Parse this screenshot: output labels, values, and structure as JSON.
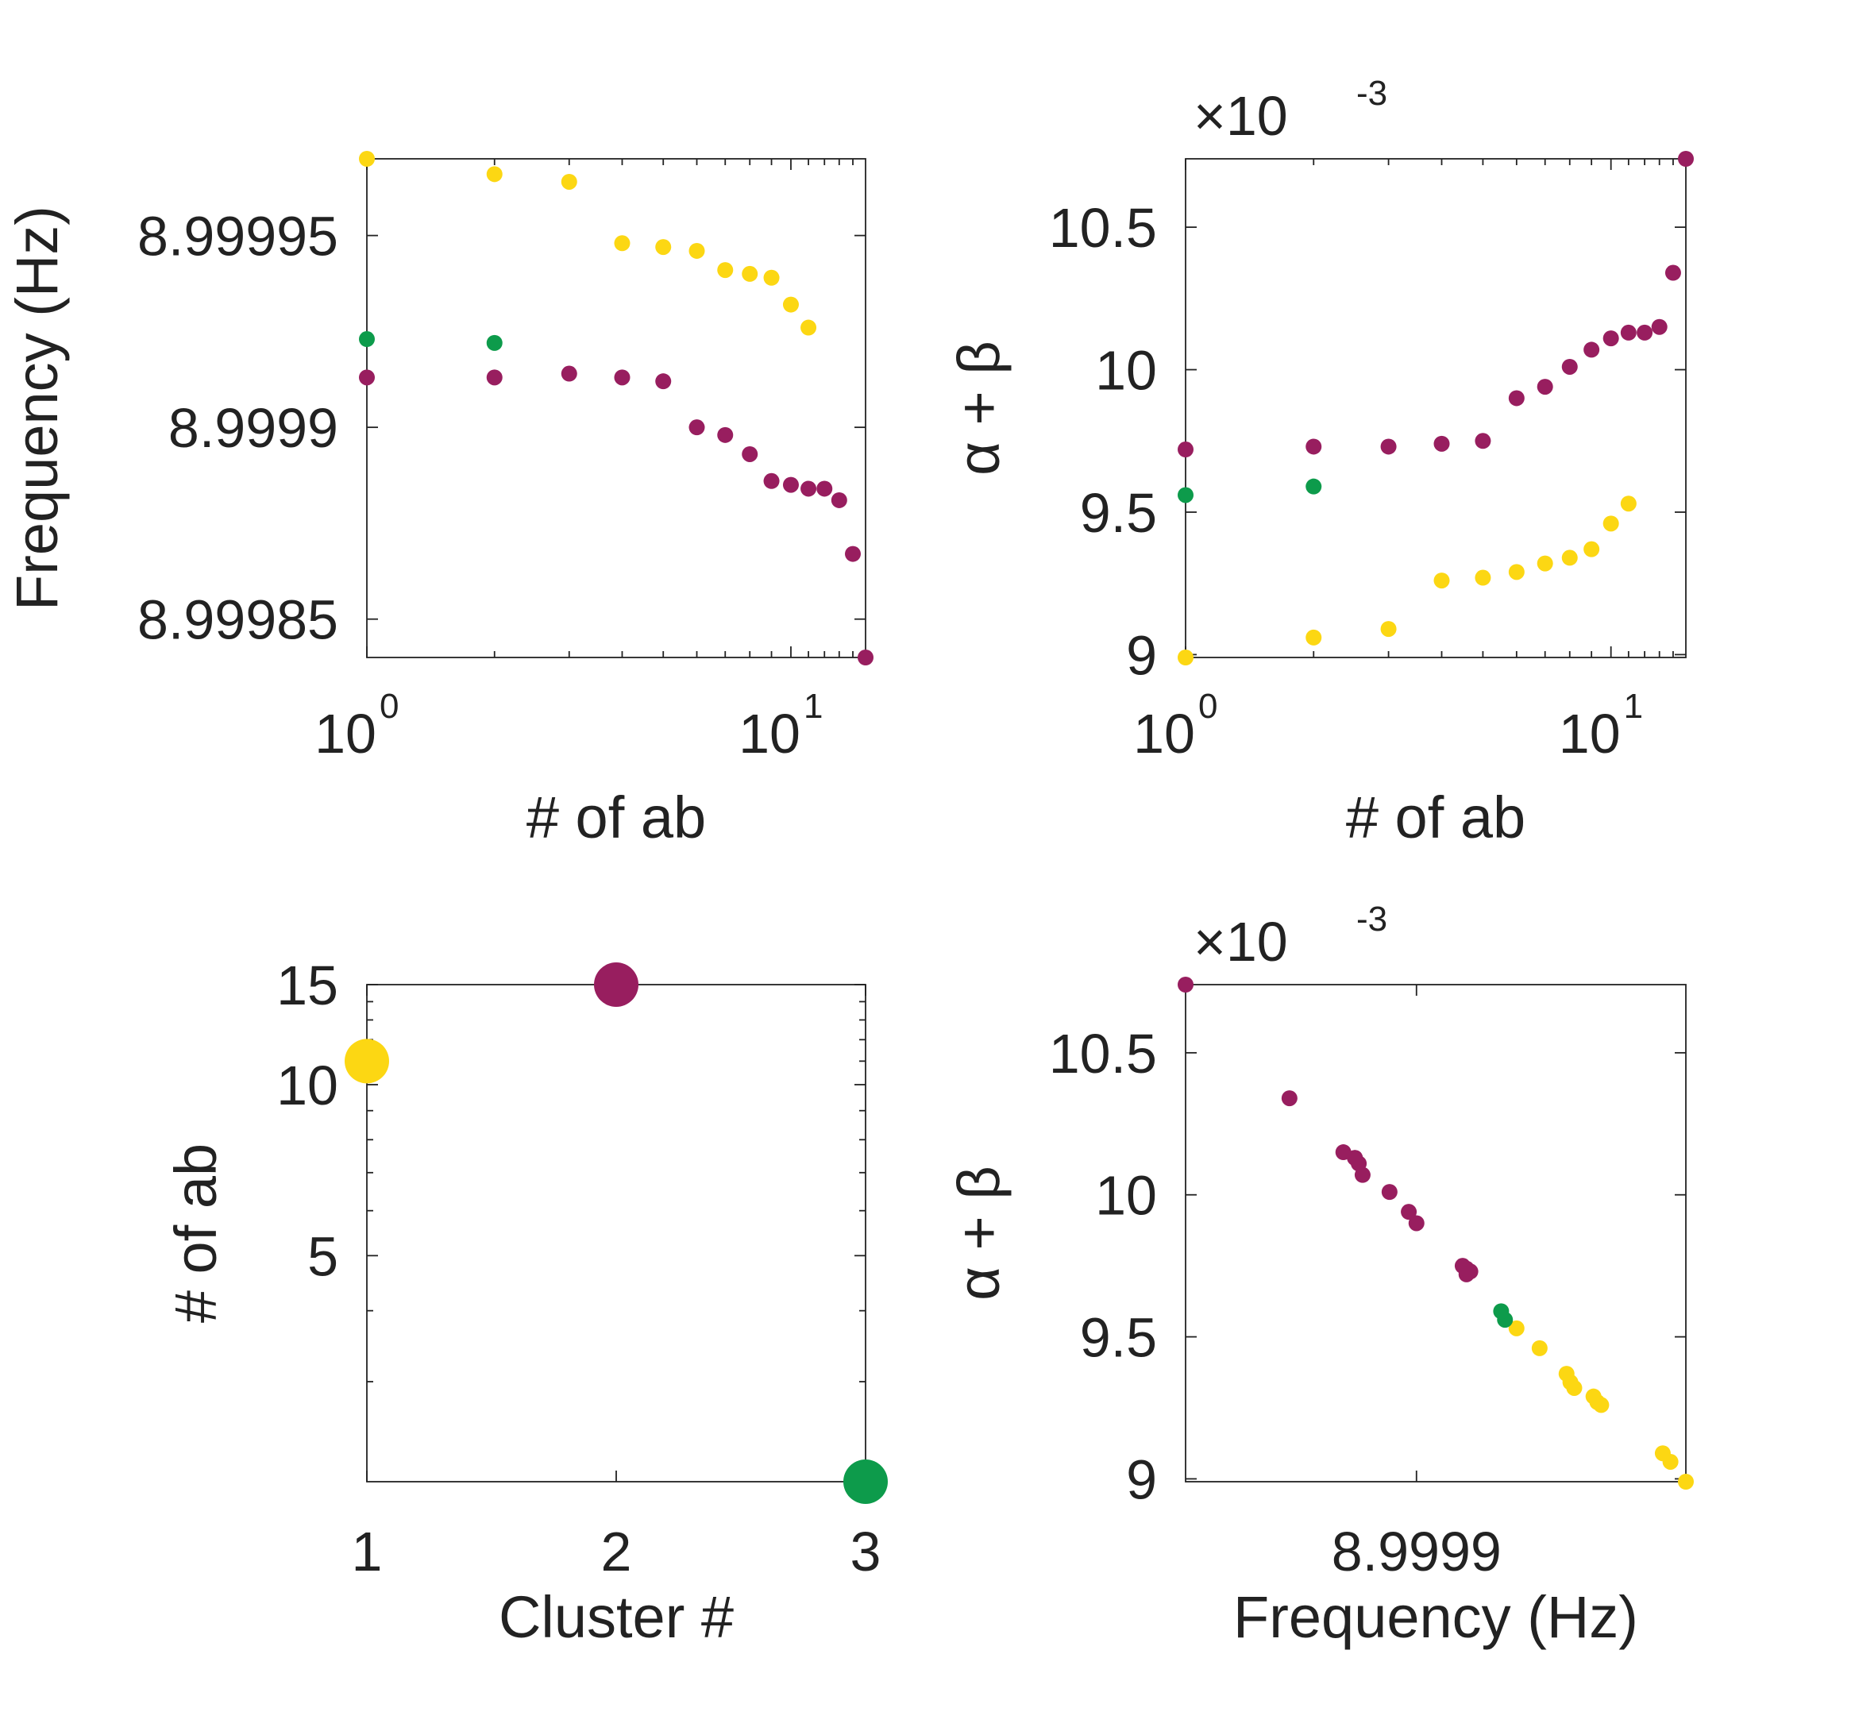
{
  "colors": {
    "yellow": "#fcd713",
    "purple": "#981e5f",
    "green": "#0d9b4b",
    "axis": "#222222"
  },
  "chart_data": [
    {
      "id": "p1",
      "type": "scatter",
      "xlabel": "# of ab",
      "ylabel": "Frequency (Hz)",
      "xscale": "log",
      "xlim": [
        1,
        15
      ],
      "ylim": [
        8.99984,
        8.99997
      ],
      "yticks": [
        {
          "v": 8.99985,
          "label": "8.99985"
        },
        {
          "v": 8.9999,
          "label": "8.9999"
        },
        {
          "v": 8.99995,
          "label": "8.99995"
        }
      ],
      "xticks": [
        {
          "v": 1,
          "base": "10",
          "exp": "0"
        },
        {
          "v": 10,
          "base": "10",
          "exp": "1"
        }
      ],
      "series": [
        {
          "color": "yellow",
          "x": [
            1,
            2,
            3,
            4,
            5,
            6,
            7,
            8,
            9,
            10,
            11
          ],
          "y": [
            8.99997,
            8.999966,
            8.999964,
            8.999948,
            8.999947,
            8.999946,
            8.999941,
            8.99994,
            8.999939,
            8.999932,
            8.999926
          ]
        },
        {
          "color": "purple",
          "x": [
            1,
            2,
            3,
            4,
            5,
            6,
            7,
            8,
            9,
            10,
            11,
            12,
            13,
            14,
            15
          ],
          "y": [
            8.999913,
            8.999913,
            8.999914,
            8.999913,
            8.999912,
            8.9999,
            8.999898,
            8.999893,
            8.999886,
            8.999885,
            8.999884,
            8.999884,
            8.999881,
            8.999867,
            8.99984
          ]
        },
        {
          "color": "green",
          "x": [
            1,
            2
          ],
          "y": [
            8.999923,
            8.999922
          ]
        }
      ]
    },
    {
      "id": "p2",
      "type": "scatter",
      "xlabel": "# of ab",
      "ylabel": "α + β",
      "exponent_note": {
        "base": "×10",
        "exp": "-3"
      },
      "xscale": "log",
      "xlim": [
        1,
        15
      ],
      "ylim": [
        8.99,
        10.74
      ],
      "yticks": [
        {
          "v": 9,
          "label": "9"
        },
        {
          "v": 9.5,
          "label": "9.5"
        },
        {
          "v": 10,
          "label": "10"
        },
        {
          "v": 10.5,
          "label": "10.5"
        }
      ],
      "xticks": [
        {
          "v": 1,
          "base": "10",
          "exp": "0"
        },
        {
          "v": 10,
          "base": "10",
          "exp": "1"
        }
      ],
      "series": [
        {
          "color": "yellow",
          "x": [
            1,
            2,
            3,
            4,
            5,
            6,
            7,
            8,
            9,
            10,
            11
          ],
          "y": [
            8.99,
            9.06,
            9.09,
            9.26,
            9.27,
            9.29,
            9.32,
            9.34,
            9.37,
            9.46,
            9.53
          ]
        },
        {
          "color": "purple",
          "x": [
            1,
            2,
            3,
            4,
            5,
            6,
            7,
            8,
            9,
            10,
            11,
            12,
            13,
            14,
            15
          ],
          "y": [
            9.72,
            9.73,
            9.73,
            9.74,
            9.75,
            9.9,
            9.94,
            10.01,
            10.07,
            10.11,
            10.13,
            10.13,
            10.15,
            10.34,
            10.74
          ]
        },
        {
          "color": "green",
          "x": [
            1,
            2
          ],
          "y": [
            9.56,
            9.59
          ]
        }
      ]
    },
    {
      "id": "p3",
      "type": "scatter",
      "xlabel": "Cluster #",
      "ylabel": "# of ab",
      "xscale": "linear",
      "yscale": "log",
      "xlim": [
        1,
        3
      ],
      "ylim": [
        2,
        15
      ],
      "yticks": [
        {
          "v": 5,
          "label": "5"
        },
        {
          "v": 10,
          "label": "10"
        },
        {
          "v": 15,
          "label": "15"
        }
      ],
      "xticks": [
        {
          "v": 1,
          "label": "1"
        },
        {
          "v": 2,
          "label": "2"
        },
        {
          "v": 3,
          "label": "3"
        }
      ],
      "points": [
        {
          "x": 1,
          "y": 11,
          "color": "yellow"
        },
        {
          "x": 2,
          "y": 15,
          "color": "purple"
        },
        {
          "x": 3,
          "y": 2,
          "color": "green"
        }
      ]
    },
    {
      "id": "p4",
      "type": "scatter",
      "xlabel": "Frequency (Hz)",
      "ylabel": "α + β",
      "exponent_note": {
        "base": "×10",
        "exp": "-3"
      },
      "xscale": "linear",
      "xlim": [
        8.99984,
        8.99997
      ],
      "ylim": [
        8.99,
        10.74
      ],
      "yticks": [
        {
          "v": 9,
          "label": "9"
        },
        {
          "v": 9.5,
          "label": "9.5"
        },
        {
          "v": 10,
          "label": "10"
        },
        {
          "v": 10.5,
          "label": "10.5"
        }
      ],
      "xticks": [
        {
          "v": 8.9999,
          "label": "8.9999"
        }
      ],
      "series": [
        {
          "color": "purple",
          "x": [
            8.999913,
            8.999913,
            8.999914,
            8.999913,
            8.999912,
            8.9999,
            8.999898,
            8.999893,
            8.999886,
            8.999885,
            8.999884,
            8.999884,
            8.999881,
            8.999867,
            8.99984
          ],
          "y": [
            9.72,
            9.73,
            9.73,
            9.74,
            9.75,
            9.9,
            9.94,
            10.01,
            10.07,
            10.11,
            10.13,
            10.13,
            10.15,
            10.34,
            10.74
          ]
        },
        {
          "color": "yellow",
          "x": [
            8.99997,
            8.999966,
            8.999964,
            8.999948,
            8.999947,
            8.999946,
            8.999941,
            8.99994,
            8.999939,
            8.999932,
            8.999926
          ],
          "y": [
            8.99,
            9.06,
            9.09,
            9.26,
            9.27,
            9.29,
            9.32,
            9.34,
            9.37,
            9.46,
            9.53
          ]
        },
        {
          "color": "green",
          "x": [
            8.999923,
            8.999922
          ],
          "y": [
            9.56,
            9.59
          ]
        }
      ]
    }
  ]
}
